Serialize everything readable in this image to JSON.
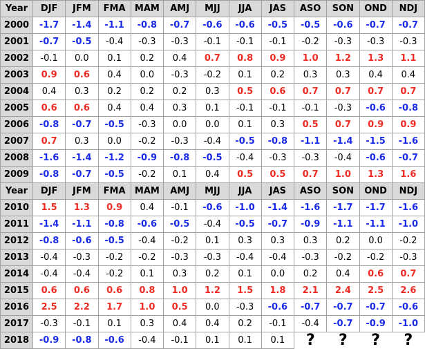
{
  "table": {
    "header": [
      "Year",
      "DJF",
      "JFM",
      "FMA",
      "MAM",
      "AMJ",
      "MJJ",
      "JJA",
      "JAS",
      "ASO",
      "SON",
      "OND",
      "NDJ"
    ],
    "header_repeat_after_year": "2009",
    "unknown_symbol": "?",
    "rows": [
      {
        "year": "2000",
        "values": [
          "-1.7",
          "-1.4",
          "-1.1",
          "-0.8",
          "-0.7",
          "-0.6",
          "-0.6",
          "-0.5",
          "-0.5",
          "-0.6",
          "-0.7",
          "-0.7"
        ]
      },
      {
        "year": "2001",
        "values": [
          "-0.7",
          "-0.5",
          "-0.4",
          "-0.3",
          "-0.3",
          "-0.1",
          "-0.1",
          "-0.1",
          "-0.2",
          "-0.3",
          "-0.3",
          "-0.3"
        ]
      },
      {
        "year": "2002",
        "values": [
          "-0.1",
          "0.0",
          "0.1",
          "0.2",
          "0.4",
          "0.7",
          "0.8",
          "0.9",
          "1.0",
          "1.2",
          "1.3",
          "1.1"
        ]
      },
      {
        "year": "2003",
        "values": [
          "0.9",
          "0.6",
          "0.4",
          "0.0",
          "-0.3",
          "-0.2",
          "0.1",
          "0.2",
          "0.3",
          "0.3",
          "0.4",
          "0.4"
        ]
      },
      {
        "year": "2004",
        "values": [
          "0.4",
          "0.3",
          "0.2",
          "0.2",
          "0.2",
          "0.3",
          "0.5",
          "0.6",
          "0.7",
          "0.7",
          "0.7",
          "0.7"
        ]
      },
      {
        "year": "2005",
        "values": [
          "0.6",
          "0.6",
          "0.4",
          "0.4",
          "0.3",
          "0.1",
          "-0.1",
          "-0.1",
          "-0.1",
          "-0.3",
          "-0.6",
          "-0.8"
        ]
      },
      {
        "year": "2006",
        "values": [
          "-0.8",
          "-0.7",
          "-0.5",
          "-0.3",
          "0.0",
          "0.0",
          "0.1",
          "0.3",
          "0.5",
          "0.7",
          "0.9",
          "0.9"
        ]
      },
      {
        "year": "2007",
        "values": [
          "0.7",
          "0.3",
          "0.0",
          "-0.2",
          "-0.3",
          "-0.4",
          "-0.5",
          "-0.8",
          "-1.1",
          "-1.4",
          "-1.5",
          "-1.6"
        ]
      },
      {
        "year": "2008",
        "values": [
          "-1.6",
          "-1.4",
          "-1.2",
          "-0.9",
          "-0.8",
          "-0.5",
          "-0.4",
          "-0.3",
          "-0.3",
          "-0.4",
          "-0.6",
          "-0.7"
        ]
      },
      {
        "year": "2009",
        "values": [
          "-0.8",
          "-0.7",
          "-0.5",
          "-0.2",
          "0.1",
          "0.4",
          "0.5",
          "0.5",
          "0.7",
          "1.0",
          "1.3",
          "1.6"
        ]
      },
      {
        "year": "2010",
        "values": [
          "1.5",
          "1.3",
          "0.9",
          "0.4",
          "-0.1",
          "-0.6",
          "-1.0",
          "-1.4",
          "-1.6",
          "-1.7",
          "-1.7",
          "-1.6"
        ]
      },
      {
        "year": "2011",
        "values": [
          "-1.4",
          "-1.1",
          "-0.8",
          "-0.6",
          "-0.5",
          "-0.4",
          "-0.5",
          "-0.7",
          "-0.9",
          "-1.1",
          "-1.1",
          "-1.0"
        ]
      },
      {
        "year": "2012",
        "values": [
          "-0.8",
          "-0.6",
          "-0.5",
          "-0.4",
          "-0.2",
          "0.1",
          "0.3",
          "0.3",
          "0.3",
          "0.2",
          "0.0",
          "-0.2"
        ]
      },
      {
        "year": "2013",
        "values": [
          "-0.4",
          "-0.3",
          "-0.2",
          "-0.2",
          "-0.3",
          "-0.3",
          "-0.4",
          "-0.4",
          "-0.3",
          "-0.2",
          "-0.2",
          "-0.3"
        ]
      },
      {
        "year": "2014",
        "values": [
          "-0.4",
          "-0.4",
          "-0.2",
          "0.1",
          "0.3",
          "0.2",
          "0.1",
          "0.0",
          "0.2",
          "0.4",
          "0.6",
          "0.7"
        ]
      },
      {
        "year": "2015",
        "values": [
          "0.6",
          "0.6",
          "0.6",
          "0.8",
          "1.0",
          "1.2",
          "1.5",
          "1.8",
          "2.1",
          "2.4",
          "2.5",
          "2.6"
        ]
      },
      {
        "year": "2016",
        "values": [
          "2.5",
          "2.2",
          "1.7",
          "1.0",
          "0.5",
          "0.0",
          "-0.3",
          "-0.6",
          "-0.7",
          "-0.7",
          "-0.7",
          "-0.6"
        ]
      },
      {
        "year": "2017",
        "values": [
          "-0.3",
          "-0.1",
          "0.1",
          "0.3",
          "0.4",
          "0.4",
          "0.2",
          "-0.1",
          "-0.4",
          "-0.7",
          "-0.9",
          "-1.0"
        ]
      },
      {
        "year": "2018",
        "values": [
          "-0.9",
          "-0.8",
          "-0.6",
          "-0.4",
          "-0.1",
          "0.1",
          "0.1",
          "0.1",
          "?",
          "?",
          "?",
          "?"
        ]
      }
    ]
  },
  "colors": {
    "warm": "#ee2b24",
    "cool": "#1a2be8",
    "neutral": "#000000",
    "header_bg": "#d9d9d9",
    "border": "#a0a0a0"
  },
  "thresholds": {
    "warm_at_or_above": 0.5,
    "cool_at_or_below": -0.5
  }
}
